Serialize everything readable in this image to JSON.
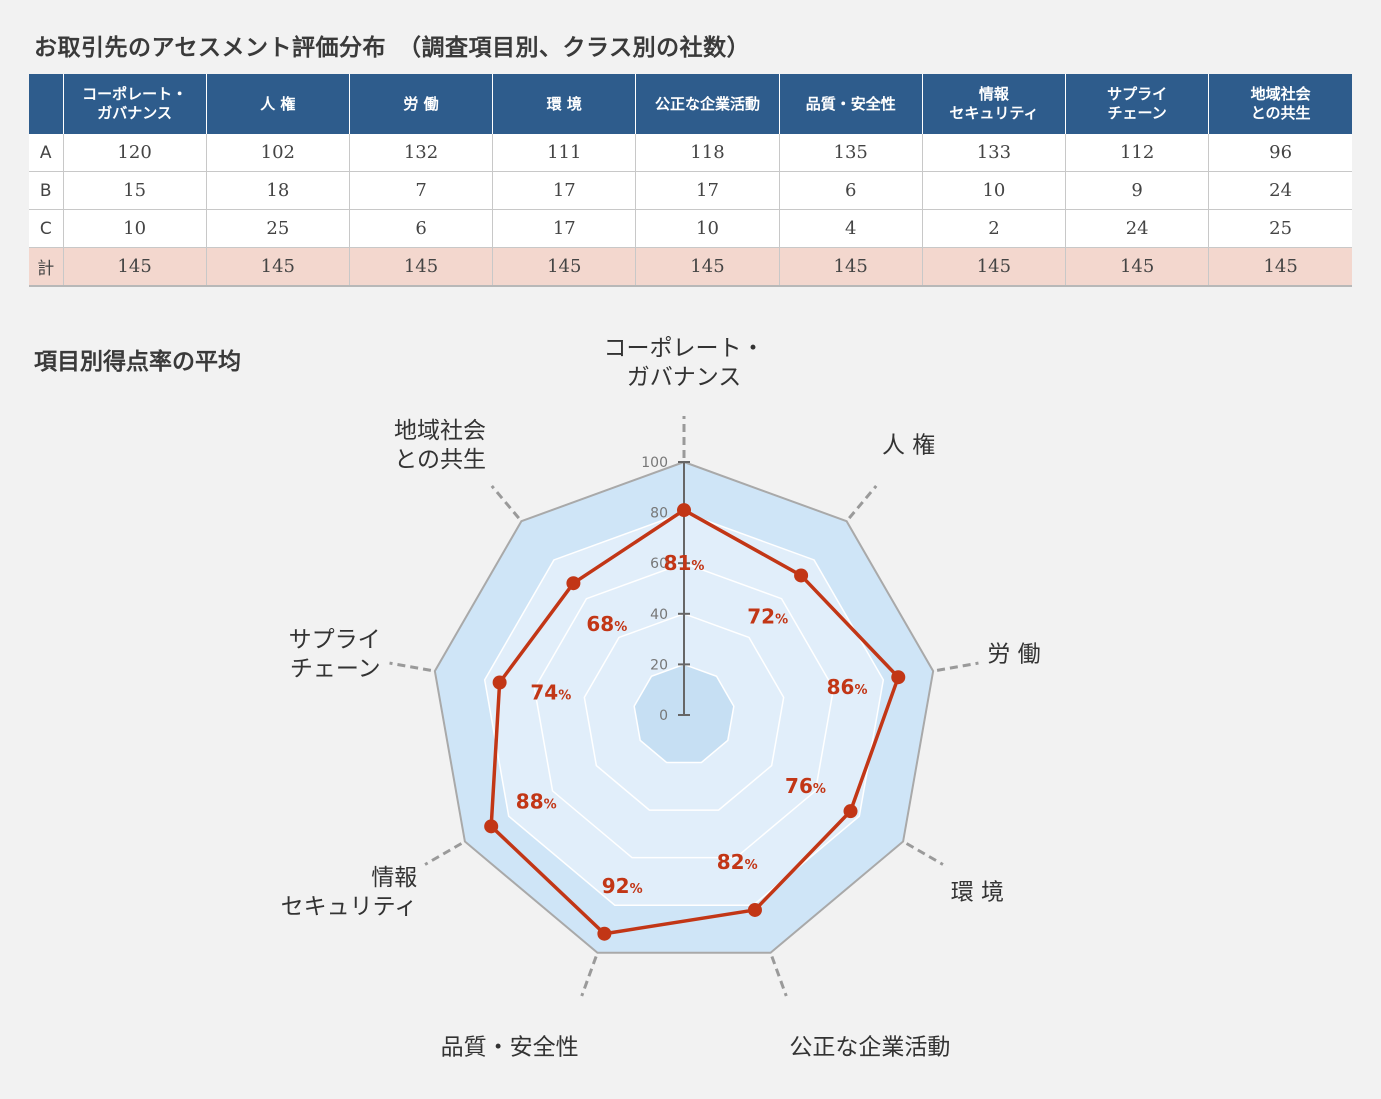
{
  "title": "お取引先のアセスメント評価分布　（調査項目別、クラス別の社数）",
  "table": {
    "headers": [
      "",
      "コーポレート・\nガバナンス",
      "人 権",
      "労 働",
      "環 境",
      "公正な企業活動",
      "品質・安全性",
      "情報\nセキュリティ",
      "サプライ\nチェーン",
      "地域社会\nとの共生"
    ],
    "rows": [
      {
        "label": "A",
        "values": [
          "120",
          "102",
          "132",
          "111",
          "118",
          "135",
          "133",
          "112",
          "96"
        ]
      },
      {
        "label": "B",
        "values": [
          "15",
          "18",
          "7",
          "17",
          "17",
          "6",
          "10",
          "9",
          "24"
        ]
      },
      {
        "label": "C",
        "values": [
          "10",
          "25",
          "6",
          "17",
          "10",
          "4",
          "2",
          "24",
          "25"
        ]
      },
      {
        "label": "計",
        "values": [
          "145",
          "145",
          "145",
          "145",
          "145",
          "145",
          "145",
          "145",
          "145"
        ]
      }
    ]
  },
  "section_title": "項目別得点率の平均",
  "chart_data": {
    "type": "radar",
    "axes": [
      "コーポレート・\nガバナンス",
      "人 権",
      "労 働",
      "環 境",
      "公正な企業活動",
      "品質・安全性",
      "情報\nセキュリティ",
      "サプライ\nチェーン",
      "地域社会\nとの共生"
    ],
    "values": [
      81,
      72,
      86,
      76,
      82,
      92,
      88,
      74,
      68
    ],
    "value_labels": [
      "81",
      "72",
      "86",
      "76",
      "82",
      "92",
      "88",
      "74",
      "68"
    ],
    "unit": "%",
    "ticks": [
      "0",
      "20",
      "40",
      "60",
      "80",
      "100"
    ],
    "ylim": [
      0,
      100
    ],
    "colors": {
      "line": "#c23616",
      "outer_band": "#cfe5f7",
      "inner_band": "#e1eefa",
      "center": "#c6dff3",
      "outline": "#a9a9a9",
      "label": "#c23616"
    }
  }
}
